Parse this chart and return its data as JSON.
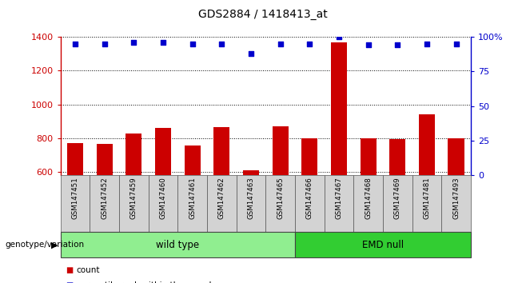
{
  "title": "GDS2884 / 1418413_at",
  "samples": [
    "GSM147451",
    "GSM147452",
    "GSM147459",
    "GSM147460",
    "GSM147461",
    "GSM147462",
    "GSM147463",
    "GSM147465",
    "GSM147466",
    "GSM147467",
    "GSM147468",
    "GSM147469",
    "GSM147481",
    "GSM147493"
  ],
  "counts": [
    770,
    765,
    830,
    860,
    755,
    865,
    610,
    870,
    800,
    1365,
    800,
    795,
    940,
    800
  ],
  "percentile_ranks": [
    95,
    95,
    96,
    96,
    95,
    95,
    88,
    95,
    95,
    100,
    94,
    94,
    95,
    95
  ],
  "groups": {
    "wild type": [
      0,
      7
    ],
    "EMD null": [
      8,
      13
    ]
  },
  "ylim_left": [
    580,
    1400
  ],
  "ylim_right": [
    0,
    100
  ],
  "yticks_left": [
    600,
    800,
    1000,
    1200,
    1400
  ],
  "yticks_right": [
    0,
    25,
    50,
    75,
    100
  ],
  "bar_color": "#cc0000",
  "dot_color": "#0000cc",
  "grid_color": "#000000",
  "wt_color": "#90ee90",
  "emd_color": "#32cd32",
  "label_bg_color": "#d3d3d3",
  "legend_count_color": "#cc0000",
  "legend_pct_color": "#0000cc",
  "figsize": [
    6.58,
    3.54
  ],
  "dpi": 100
}
